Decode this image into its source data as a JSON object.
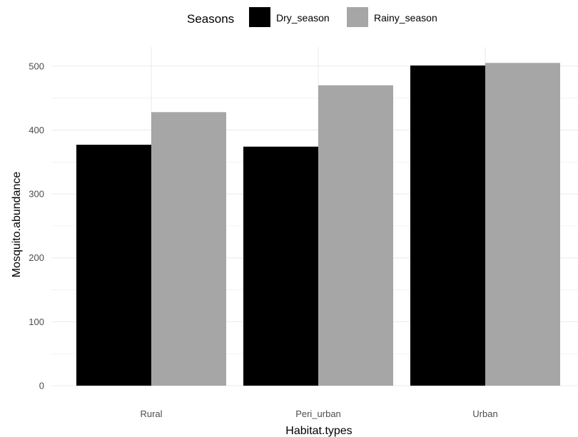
{
  "chart_data": {
    "type": "bar",
    "title": "",
    "xlabel": "Habitat.types",
    "ylabel": "Mosquito.abundance",
    "categories": [
      "Rural",
      "Peri_urban",
      "Urban"
    ],
    "series": [
      {
        "name": "Dry_season",
        "values": [
          377,
          374,
          501
        ],
        "color": "#000000"
      },
      {
        "name": "Rainy_season",
        "values": [
          428,
          470,
          505
        ],
        "color": "#a6a6a6"
      }
    ],
    "ylim": [
      0,
      530
    ],
    "yticks": [
      0,
      100,
      200,
      300,
      400,
      500
    ],
    "grid": true,
    "legend": {
      "title": "Seasons",
      "position": "top"
    },
    "colors": {
      "grid": "#ebebeb",
      "tick_text": "#4d4d4d",
      "background": "#ffffff"
    }
  }
}
